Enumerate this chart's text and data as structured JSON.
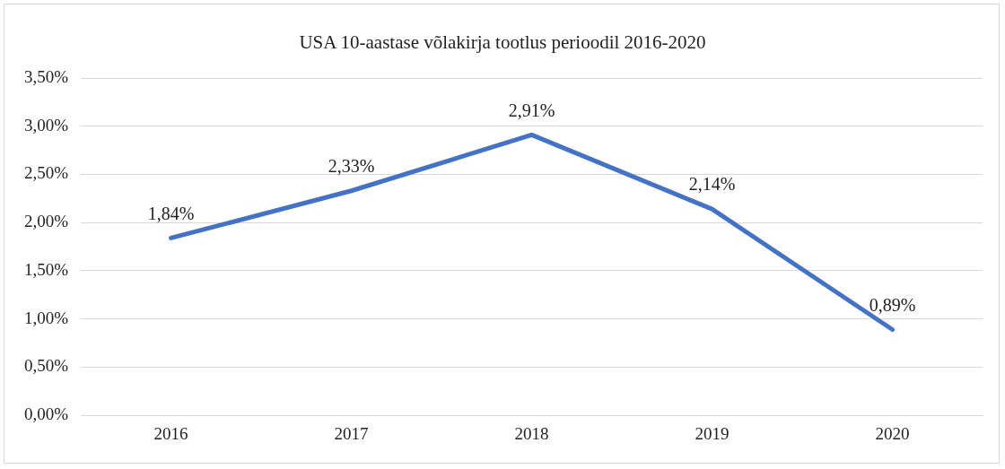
{
  "chart_data": {
    "type": "line",
    "title": "USA 10-aastase võlakirja tootlus perioodil 2016-2020",
    "categories": [
      "2016",
      "2017",
      "2018",
      "2019",
      "2020"
    ],
    "values": [
      1.84,
      2.33,
      2.91,
      2.14,
      0.89
    ],
    "color": "#4472c4",
    "value_labels": [
      "1,84%",
      "2,33%",
      "2,91%",
      "2,14%",
      "0,89%"
    ],
    "ylim": [
      0,
      3.5
    ],
    "yticks": [
      {
        "value": 0,
        "label": "0,00%"
      },
      {
        "value": 0.5,
        "label": "0,50%"
      },
      {
        "value": 1,
        "label": "1,00%"
      },
      {
        "value": 1.5,
        "label": "1,50%"
      },
      {
        "value": 2,
        "label": "2,00%"
      },
      {
        "value": 2.5,
        "label": "2,50%"
      },
      {
        "value": 3,
        "label": "3,00%"
      },
      {
        "value": 3.5,
        "label": "3,50%"
      }
    ],
    "grid": "y",
    "marker": "none",
    "line_style": "solid"
  }
}
